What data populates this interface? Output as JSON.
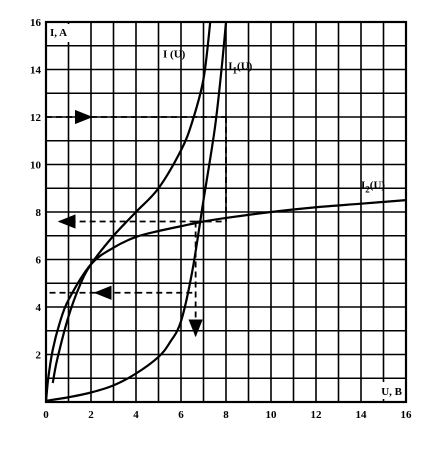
{
  "chart_data": {
    "type": "line",
    "title": "",
    "xlabel": "U, B",
    "ylabel": "I, A",
    "xlim": [
      0,
      16
    ],
    "ylim": [
      0,
      16
    ],
    "xticks": [
      0,
      2,
      4,
      6,
      8,
      10,
      12,
      14,
      16
    ],
    "yticks": [
      2,
      4,
      6,
      8,
      10,
      12,
      14,
      16
    ],
    "grid": true,
    "legend": "none",
    "series": [
      {
        "name": "I (U)",
        "x": [
          0.3,
          0.5,
          1,
          1.5,
          2,
          3,
          4,
          5,
          6,
          6.5,
          7,
          7.3
        ],
        "y": [
          0.8,
          1.8,
          3.6,
          4.9,
          5.8,
          7.0,
          8.0,
          9.0,
          10.6,
          11.8,
          13.6,
          16.0
        ]
      },
      {
        "name": "I1(U)",
        "x": [
          0,
          1,
          2,
          3,
          4,
          5,
          5.5,
          6,
          6.5,
          7,
          7.5,
          7.8,
          8.0
        ],
        "y": [
          0.05,
          0.2,
          0.4,
          0.7,
          1.2,
          1.9,
          2.5,
          3.4,
          5.5,
          8.5,
          11.5,
          14.0,
          16.0
        ]
      },
      {
        "name": "I2(U)",
        "x": [
          0,
          0.1,
          0.3,
          0.6,
          1,
          2,
          3,
          4,
          5,
          6,
          7,
          8,
          10,
          12,
          14,
          16
        ],
        "y": [
          0,
          1.0,
          2.2,
          3.3,
          4.3,
          5.8,
          6.5,
          6.95,
          7.2,
          7.4,
          7.6,
          7.75,
          8.0,
          8.2,
          8.35,
          8.5
        ]
      }
    ],
    "annotations": [
      {
        "type": "dashed-arrow",
        "from": [
          0,
          12
        ],
        "to": [
          2,
          12
        ]
      },
      {
        "type": "dashed-line",
        "from": [
          2,
          12
        ],
        "to": [
          8,
          12
        ]
      },
      {
        "type": "dashed-line",
        "from": [
          8,
          12
        ],
        "to": [
          8,
          7.6
        ]
      },
      {
        "type": "dashed-line",
        "from": [
          6.65,
          7.6
        ],
        "to": [
          8,
          7.6
        ]
      },
      {
        "type": "dashed-arrow",
        "from": [
          6.65,
          7.6
        ],
        "to": [
          0.6,
          7.6
        ]
      },
      {
        "type": "dashed-arrow",
        "from": [
          6.65,
          7.6
        ],
        "to": [
          6.65,
          2.8
        ]
      },
      {
        "type": "dashed-line",
        "from": [
          6.5,
          4.6
        ],
        "to": [
          6.5,
          4.6
        ]
      },
      {
        "type": "dashed-line",
        "from": [
          6.5,
          4.6
        ],
        "to": [
          4.2,
          4.6
        ]
      },
      {
        "type": "dashed-arrow",
        "from": [
          4.2,
          4.6
        ],
        "to": [
          2.2,
          4.6
        ]
      },
      {
        "type": "dashed-line",
        "from": [
          2.2,
          4.6
        ],
        "to": [
          0,
          4.6
        ]
      }
    ],
    "series_labels": [
      "I (U)",
      "I1(U)",
      "I2(U)"
    ],
    "colors": {
      "line": "#000000",
      "grid": "#000000",
      "background": "#ffffff"
    }
  }
}
